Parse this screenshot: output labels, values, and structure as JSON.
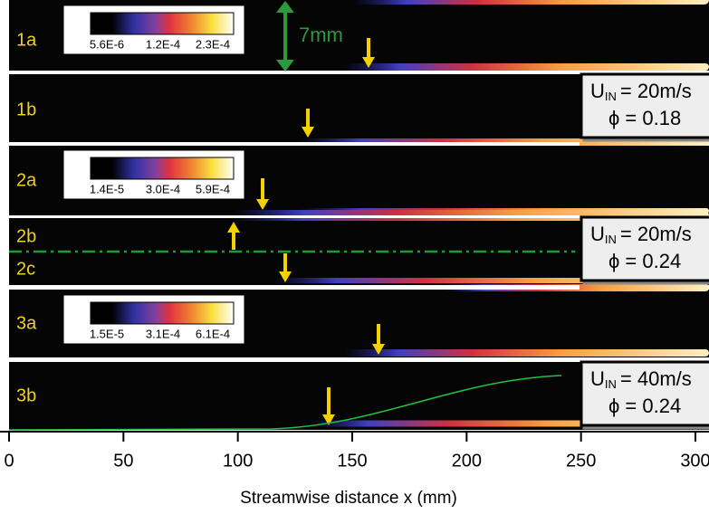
{
  "panels": [
    "1a",
    "1b",
    "2a",
    "2b",
    "2c",
    "3a",
    "3b"
  ],
  "colorbars": [
    {
      "ticks": [
        "5.6E-6",
        "1.2E-4",
        "2.3E-4"
      ]
    },
    {
      "ticks": [
        "1.4E-5",
        "3.0E-4",
        "5.9E-4"
      ]
    },
    {
      "ticks": [
        "1.5E-5",
        "3.1E-4",
        "6.1E-4"
      ]
    }
  ],
  "scale_label": "7mm",
  "conditions": [
    {
      "symbol": "U",
      "subscript": "IN",
      "velocity": "= 20m/s",
      "equivalence": "ϕ = 0.18"
    },
    {
      "symbol": "U",
      "subscript": "IN",
      "velocity": "= 20m/s",
      "equivalence": "ϕ = 0.24"
    },
    {
      "symbol": "U",
      "subscript": "IN",
      "velocity": "= 40m/s",
      "equivalence": "ϕ = 0.24"
    }
  ],
  "x_axis": {
    "label": "Streamwise distance x (mm)",
    "xlim": [
      0,
      300
    ],
    "xticks": [
      0,
      50,
      100,
      150,
      200,
      250,
      300
    ]
  }
}
